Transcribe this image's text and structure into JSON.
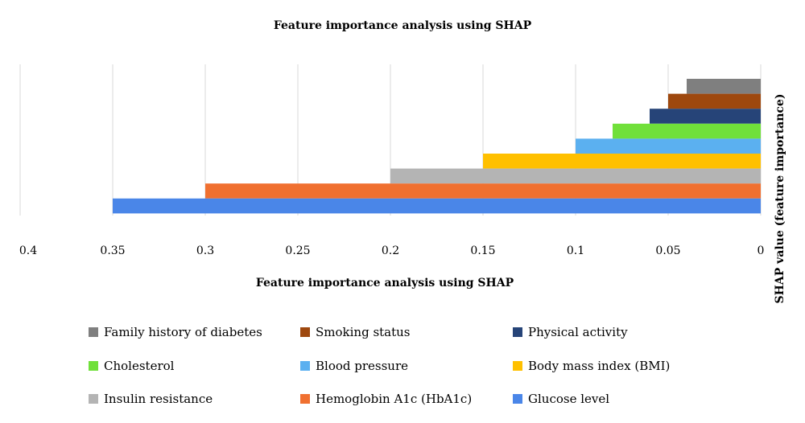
{
  "chart_data": {
    "type": "bar",
    "orientation": "horizontal",
    "x_axis_reversed": true,
    "title": "Feature importance analysis using SHAP",
    "xlabel": "Feature importance analysis using SHAP",
    "ylabel": "SHAP value (feature importance)",
    "xlim": [
      0,
      0.4
    ],
    "x_ticks": [
      "0.4",
      "0.35",
      "0.3",
      "0.25",
      "0.2",
      "0.15",
      "0.1",
      "0.05",
      "0"
    ],
    "grid": true,
    "legend_position": "bottom",
    "categories": [
      "Family history of diabetes",
      "Smoking status",
      "Physical activity",
      "Cholesterol",
      "Blood pressure",
      "Body mass index (BMI)",
      "Insulin resistance",
      "Hemoglobin A1c (HbA1c)",
      "Glucose level"
    ],
    "values": [
      0.04,
      0.05,
      0.06,
      0.08,
      0.1,
      0.15,
      0.2,
      0.3,
      0.35
    ],
    "colors": [
      "#7f7f7f",
      "#9e480e",
      "#264478",
      "#70e03a",
      "#5bb0f0",
      "#ffc000",
      "#b4b4b4",
      "#f07030",
      "#4a86e8"
    ]
  }
}
